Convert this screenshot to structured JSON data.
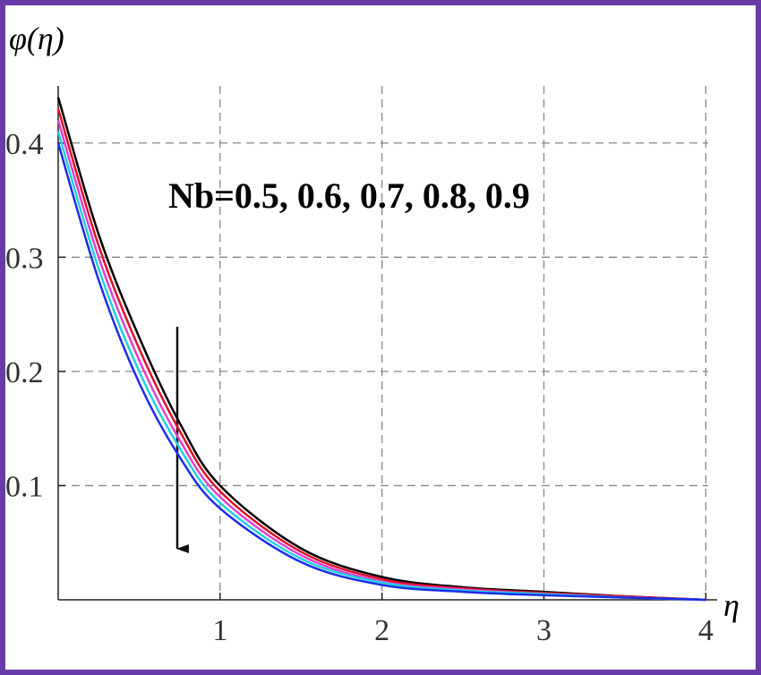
{
  "chart_data": {
    "type": "line",
    "y_label": "φ(η)",
    "x_label": "η",
    "annotation": "Nb=0.5, 0.6, 0.7, 0.8, 0.9",
    "x": [
      0,
      0.25,
      0.5,
      0.75,
      1,
      1.5,
      2,
      2.5,
      3,
      3.5,
      4
    ],
    "series": [
      {
        "name": "Nb=0.5",
        "color": "#000000",
        "values": [
          0.44,
          0.32,
          0.23,
          0.155,
          0.1,
          0.045,
          0.02,
          0.011,
          0.007,
          0.003,
          0
        ]
      },
      {
        "name": "Nb=0.6",
        "color": "#e0102a",
        "values": [
          0.43,
          0.31,
          0.22,
          0.148,
          0.095,
          0.042,
          0.018,
          0.01,
          0.006,
          0.003,
          0
        ]
      },
      {
        "name": "Nb=0.7",
        "color": "#e040d0",
        "values": [
          0.42,
          0.3,
          0.21,
          0.14,
          0.09,
          0.039,
          0.016,
          0.009,
          0.005,
          0.002,
          0
        ]
      },
      {
        "name": "Nb=0.8",
        "color": "#20d0e0",
        "values": [
          0.41,
          0.29,
          0.2,
          0.133,
          0.085,
          0.036,
          0.015,
          0.008,
          0.005,
          0.002,
          0
        ]
      },
      {
        "name": "Nb=0.9",
        "color": "#1a2ee8",
        "values": [
          0.4,
          0.28,
          0.19,
          0.125,
          0.08,
          0.033,
          0.013,
          0.007,
          0.004,
          0.002,
          0
        ]
      }
    ],
    "xlim": [
      0,
      4.07
    ],
    "ylim": [
      0,
      0.45
    ],
    "xticks": [
      1,
      2,
      3,
      4
    ],
    "yticks": [
      0.1,
      0.2,
      0.3,
      0.4
    ],
    "grid": true
  }
}
